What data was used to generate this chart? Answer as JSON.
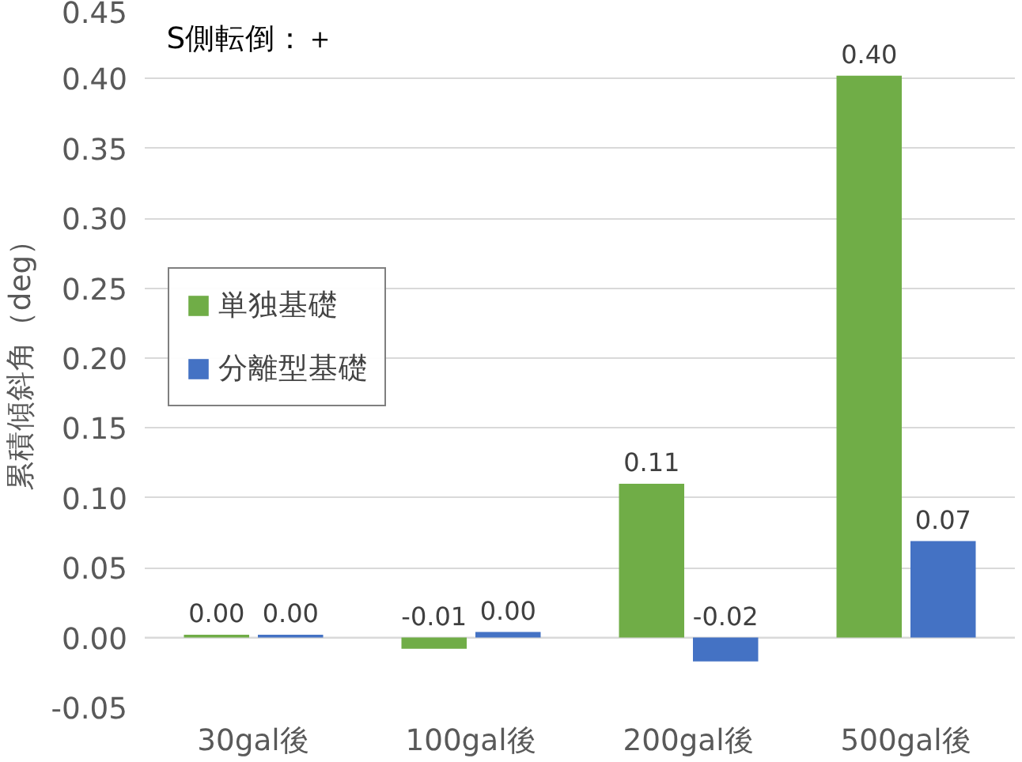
{
  "chart_data": {
    "type": "bar",
    "ylabel": "累積傾斜角（deg）",
    "categories": [
      "30gal後",
      "100gal後",
      "200gal後",
      "500gal後"
    ],
    "series": [
      {
        "name": "単独基礎",
        "color": "#70ad47",
        "values": [
          0.002,
          -0.008,
          0.11,
          0.402
        ],
        "value_labels": [
          "0.00",
          "-0.01",
          "0.11",
          "0.40"
        ]
      },
      {
        "name": "分離型基礎",
        "color": "#4472c4",
        "values": [
          0.002,
          0.004,
          -0.017,
          0.069
        ],
        "value_labels": [
          "0.00",
          "0.00",
          "-0.02",
          "0.07"
        ]
      }
    ],
    "ylim": [
      -0.05,
      0.45
    ],
    "yticks": [
      {
        "value": -0.05,
        "label": "-0.05"
      },
      {
        "value": 0,
        "label": "0.00"
      },
      {
        "value": 0.05,
        "label": "0.05"
      },
      {
        "value": 0.1,
        "label": "0.10"
      },
      {
        "value": 0.15,
        "label": "0.15"
      },
      {
        "value": 0.2,
        "label": "0.20"
      },
      {
        "value": 0.25,
        "label": "0.25"
      },
      {
        "value": 0.3,
        "label": "0.30"
      },
      {
        "value": 0.35,
        "label": "0.35"
      },
      {
        "value": 0.4,
        "label": "0.40"
      },
      {
        "value": 0.45,
        "label": "0.45"
      }
    ],
    "grid": "y",
    "legend": "left",
    "annotations": [
      "S側転倒：＋"
    ]
  }
}
